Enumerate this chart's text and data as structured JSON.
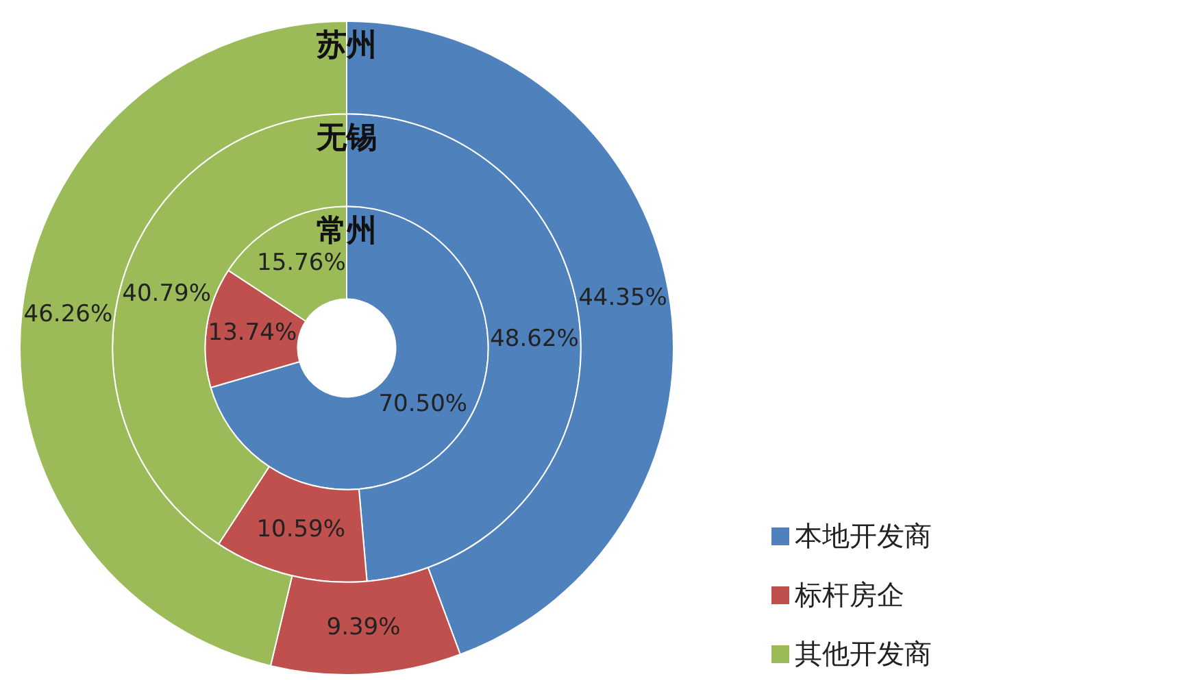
{
  "chart_data": {
    "type": "donut",
    "categories": [
      "本地开发商",
      "标杆房企",
      "其他开发商"
    ],
    "colors": [
      "#4f81bd",
      "#c0504d",
      "#9bbb59"
    ],
    "series": [
      {
        "name": "苏州",
        "values": [
          44.35,
          9.39,
          46.26
        ],
        "value_labels": [
          "44.35%",
          "9.39%",
          "46.26%"
        ]
      },
      {
        "name": "无锡",
        "values": [
          48.62,
          10.59,
          40.79
        ],
        "value_labels": [
          "48.62%",
          "10.59%",
          "40.79%"
        ]
      },
      {
        "name": "常州",
        "values": [
          70.5,
          13.74,
          15.76
        ],
        "value_labels": [
          "70.50%",
          "13.74%",
          "15.76%"
        ]
      }
    ],
    "legend": "bottom right"
  }
}
